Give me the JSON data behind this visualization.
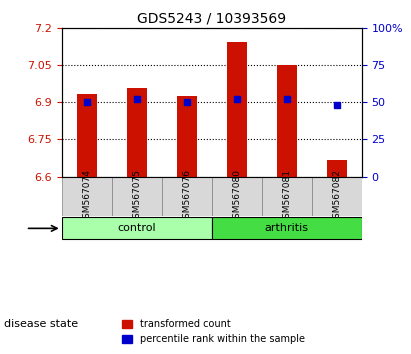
{
  "title": "GDS5243 / 10393569",
  "samples": [
    "GSM567074",
    "GSM567075",
    "GSM567076",
    "GSM567080",
    "GSM567081",
    "GSM567082"
  ],
  "groups": [
    "control",
    "control",
    "control",
    "arthritis",
    "arthritis",
    "arthritis"
  ],
  "transformed_counts": [
    6.935,
    6.96,
    6.925,
    7.145,
    7.05,
    6.665
  ],
  "percentile_ranks": [
    50,
    52,
    50,
    52,
    52,
    48
  ],
  "ylim_left": [
    6.6,
    7.2
  ],
  "ylim_right": [
    0,
    100
  ],
  "yticks_left": [
    6.6,
    6.75,
    6.9,
    7.05,
    7.2
  ],
  "yticks_right": [
    0,
    25,
    50,
    75,
    100
  ],
  "ytick_labels_left": [
    "6.6",
    "6.75",
    "6.9",
    "7.05",
    "7.2"
  ],
  "ytick_labels_right": [
    "0",
    "25",
    "50",
    "75",
    "100%"
  ],
  "bar_bottom": 6.6,
  "bar_color": "#cc1100",
  "percentile_color": "#0000cc",
  "group_spans": [
    {
      "name": "control",
      "start": 0,
      "end": 2,
      "color": "#aaffaa"
    },
    {
      "name": "arthritis",
      "start": 3,
      "end": 5,
      "color": "#44dd44"
    }
  ],
  "group_label": "disease state",
  "legend_items": [
    "transformed count",
    "percentile rank within the sample"
  ],
  "background_plot": "white",
  "background_label": "#d8d8d8"
}
